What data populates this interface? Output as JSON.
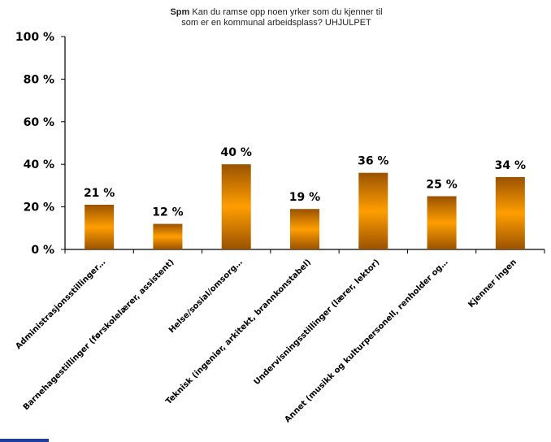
{
  "chart_data": {
    "type": "bar",
    "title_bold": "Spm",
    "title_line1": "Kan du ramse opp noen yrker som du kjenner til",
    "title_line2": "som er en kommunal arbeidsplass? UHJULPET",
    "categories": [
      "Administrasjonsstillinger…",
      "Barnehagestillinger (førskolelærer, assistent)",
      "Helse/sosial/omsorg…",
      "Teknisk (ingeniør, arkitekt, brannkonstabel)",
      "Undervisningsstillinger (lærer, lektor)",
      "Annet (musikk og kulturpersonell, renholder og…",
      "Kjenner ingen"
    ],
    "values": [
      21,
      12,
      40,
      19,
      36,
      25,
      34
    ],
    "value_labels": [
      "21 %",
      "12 %",
      "40 %",
      "19 %",
      "36 %",
      "25 %",
      "34 %"
    ],
    "y_ticks": [
      "0 %",
      "20 %",
      "40 %",
      "60 %",
      "80 %",
      "100 %"
    ],
    "ylim": [
      0,
      100
    ],
    "bar_color_edge": "#9a5200",
    "bar_color_center": "#ff9e00",
    "grid": false
  }
}
